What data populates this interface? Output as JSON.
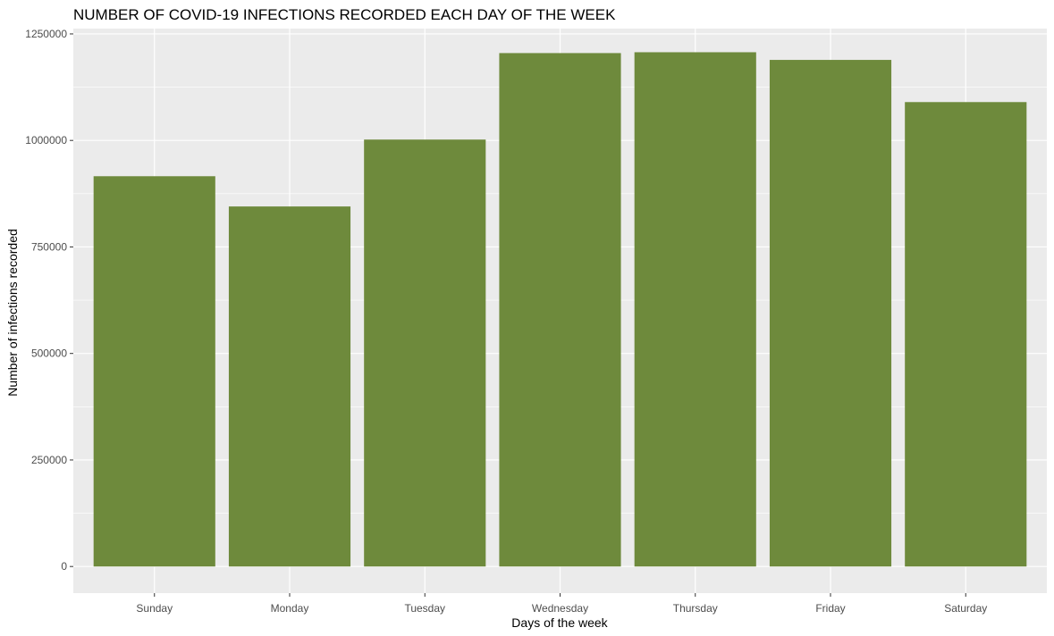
{
  "chart_data": {
    "type": "bar",
    "title": "NUMBER OF COVID-19 INFECTIONS RECORDED EACH DAY OF THE WEEK",
    "xlabel": "Days of the week",
    "ylabel": "Number of infections recorded",
    "categories": [
      "Sunday",
      "Monday",
      "Tuesday",
      "Wednesday",
      "Thursday",
      "Friday",
      "Saturday"
    ],
    "values": [
      916000,
      845000,
      1002000,
      1205000,
      1207000,
      1189000,
      1090000
    ],
    "ylim": [
      -62500,
      1262500
    ],
    "yticks": [
      0,
      250000,
      500000,
      750000,
      1000000,
      1250000
    ],
    "ytick_labels": [
      "0",
      "250000",
      "500000",
      "750000",
      "1000000",
      "1250000"
    ],
    "grid": true,
    "legend": "none",
    "colors": {
      "bar": "#6e8a3c",
      "panel": "#ebebeb",
      "grid": "#ffffff"
    }
  }
}
